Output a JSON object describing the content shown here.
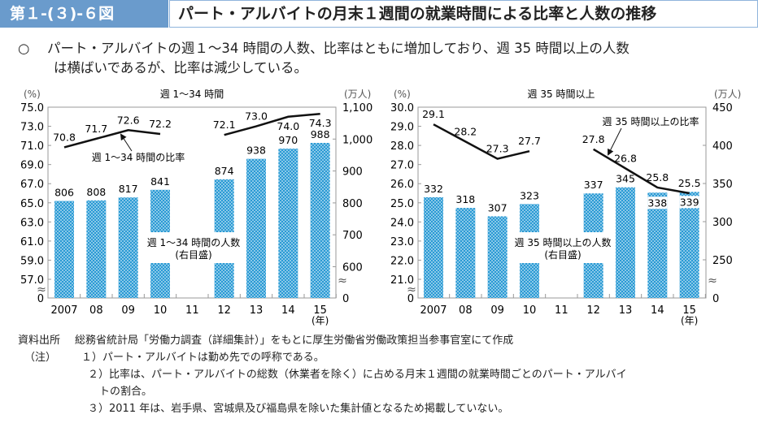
{
  "header": {
    "figure_no": "第１-(３)-６図",
    "title": "パート・アルバイトの月末１週間の就業時間による比率と人数の推移"
  },
  "summary": {
    "bullet": "○",
    "line1": "パート・アルバイトの週１～34 時間の人数、比率はともに増加しており、週 35 時間以上の人数",
    "line2": "は横ばいであるが、比率は減少している。"
  },
  "chart_data": [
    {
      "type": "bar+line",
      "title": "週 1～34 時間",
      "left_unit": "(%)",
      "right_unit": "(万人)",
      "x_unit": "(年)",
      "categories": [
        "2007",
        "08",
        "09",
        "10",
        "11",
        "12",
        "13",
        "14",
        "15"
      ],
      "left_ticks": [
        "75.0",
        "73.0",
        "71.0",
        "69.0",
        "67.0",
        "65.0",
        "63.0",
        "61.0",
        "59.0",
        "57.0",
        "0"
      ],
      "right_ticks": [
        "1,100",
        "1,000",
        "900",
        "800",
        "700",
        "600",
        "0"
      ],
      "ylim_left": [
        57,
        75
      ],
      "ylim_right": [
        500,
        1100
      ],
      "axis_break": true,
      "bar_series": {
        "name": "週 1～34 時間の人数",
        "sub": "(右目盛)",
        "values": [
          806,
          808,
          817,
          841,
          null,
          874,
          938,
          970,
          988
        ],
        "color": "#2a9ad4"
      },
      "line_series": {
        "name": "週 1～34 時間の比率",
        "values": [
          70.8,
          71.7,
          72.6,
          72.2,
          null,
          72.1,
          73.0,
          74.0,
          74.3
        ],
        "color": "#111111"
      }
    },
    {
      "type": "bar+line",
      "title": "週 35 時間以上",
      "left_unit": "(%)",
      "right_unit": "(万人)",
      "x_unit": "(年)",
      "categories": [
        "2007",
        "08",
        "09",
        "10",
        "11",
        "12",
        "13",
        "14",
        "15"
      ],
      "left_ticks": [
        "30.0",
        "29.0",
        "28.0",
        "27.0",
        "26.0",
        "25.0",
        "24.0",
        "23.0",
        "22.0",
        "21.0",
        "0"
      ],
      "right_ticks": [
        "450",
        "400",
        "350",
        "300",
        "250",
        "0"
      ],
      "ylim_left": [
        21,
        30
      ],
      "ylim_right": [
        200,
        450
      ],
      "axis_break": true,
      "bar_series": {
        "name": "週 35 時間以上の人数",
        "sub": "(右目盛)",
        "values": [
          332,
          318,
          307,
          323,
          null,
          337,
          345,
          338,
          339
        ],
        "color": "#2a9ad4"
      },
      "line_series": {
        "name": "週 35 時間以上の比率",
        "values": [
          29.1,
          28.2,
          27.3,
          27.7,
          null,
          27.8,
          26.8,
          25.8,
          25.5
        ],
        "color": "#111111"
      }
    }
  ],
  "notes": {
    "source_label": "資料出所",
    "source": "総務省統計局「労働力調査（詳細集計）」をもとに厚生労働省労働政策担当参事官室にて作成",
    "note_label": "（注）",
    "items": [
      "１）パート・アルバイトは勤め先での呼称である。",
      "２）比率は、パート・アルバイトの総数（休業者を除く）に占める月末１週間の就業時間ごとのパート・アルバイ",
      "トの割合。",
      "３）2011 年は、岩手県、宮城県及び福島県を除いた集計値となるため掲載していない。"
    ]
  }
}
